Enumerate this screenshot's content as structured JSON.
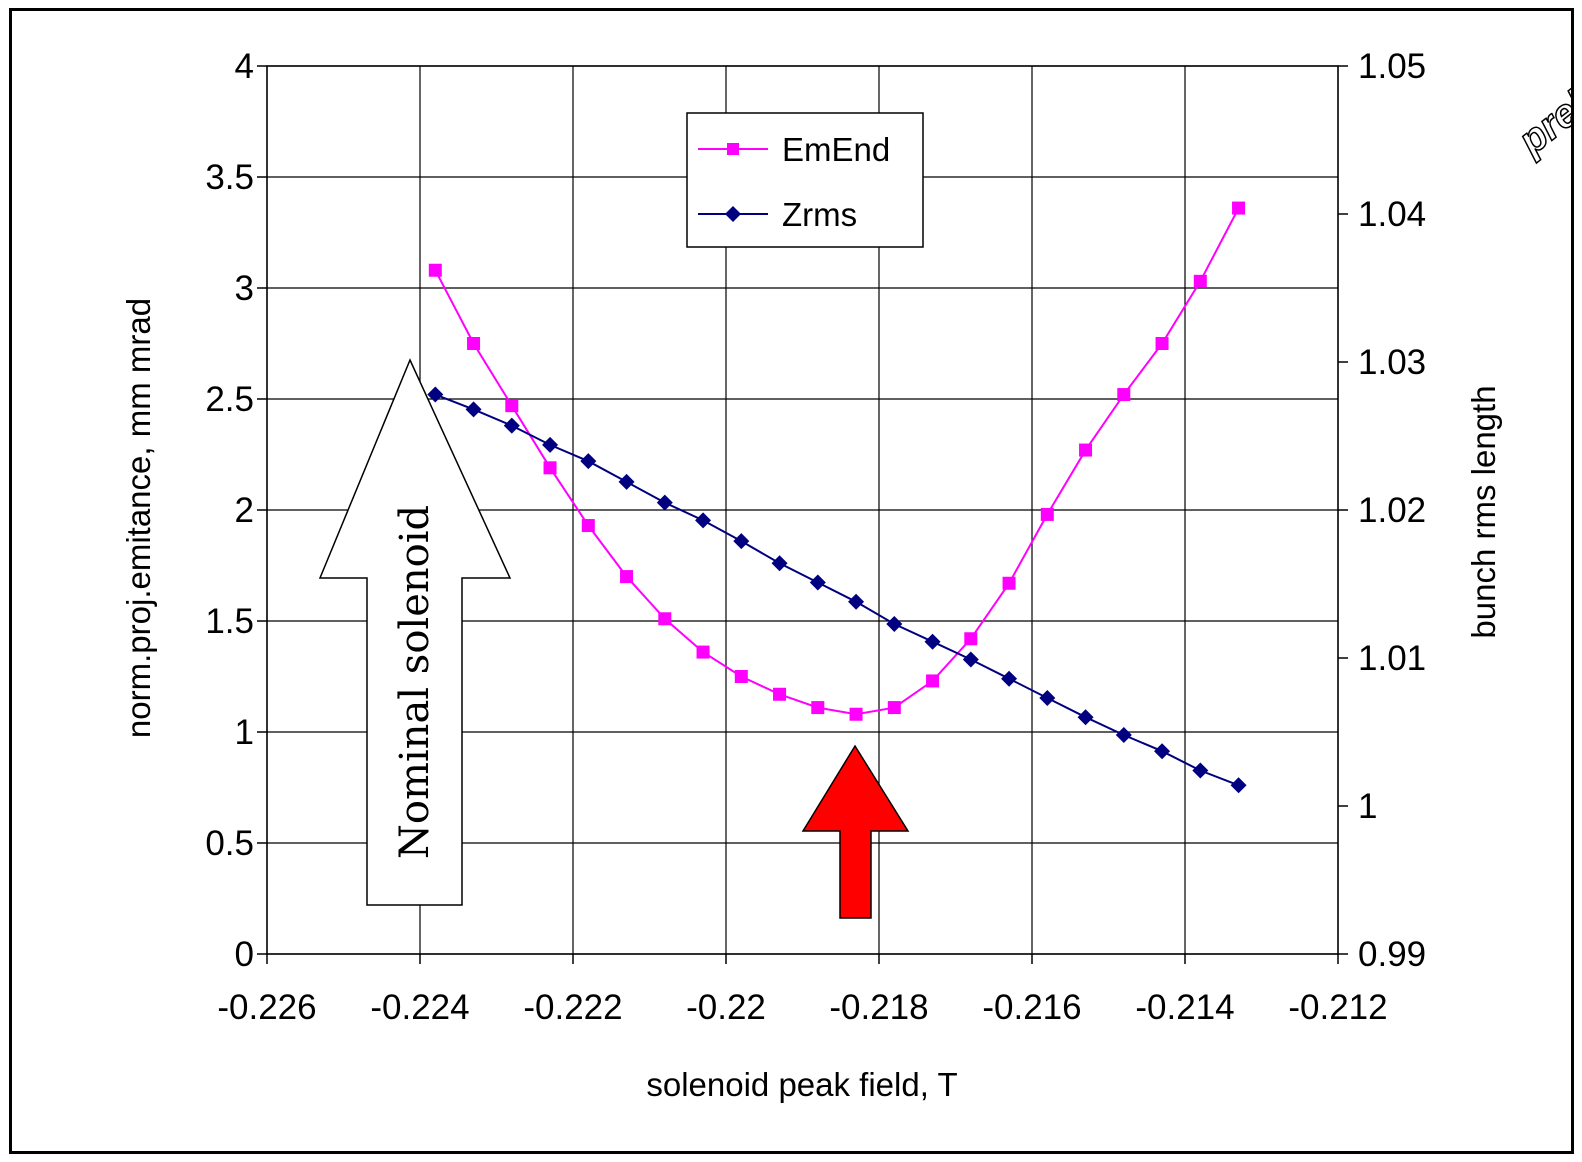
{
  "chart_data": {
    "type": "line",
    "xlabel": "solenoid peak field, T",
    "ylabel": "norm.proj.emitance, mm mrad",
    "y2label": "bunch rms length",
    "xlim": [
      -0.226,
      -0.212
    ],
    "ylim": [
      0,
      4
    ],
    "y2lim": [
      0.99,
      1.05
    ],
    "x_ticks": [
      "-0.226",
      "-0.224",
      "-0.222",
      "-0.22",
      "-0.218",
      "-0.216",
      "-0.214",
      "-0.212"
    ],
    "y_ticks": [
      "0",
      "0.5",
      "1",
      "1.5",
      "2",
      "2.5",
      "3",
      "3.5",
      "4"
    ],
    "y2_ticks": [
      "0.99",
      "1",
      "1.01",
      "1.02",
      "1.03",
      "1.04",
      "1.05"
    ],
    "grid": "horizontal and vertical",
    "legend_position": "top-center",
    "x": [
      -0.2238,
      -0.2233,
      -0.2228,
      -0.2223,
      -0.2218,
      -0.2213,
      -0.2208,
      -0.2203,
      -0.2198,
      -0.2193,
      -0.2188,
      -0.2183,
      -0.2178,
      -0.2173,
      -0.2168,
      -0.2163,
      -0.2158,
      -0.2153,
      -0.2148,
      -0.2143,
      -0.2138,
      -0.2133
    ],
    "series": [
      {
        "name": "EmEnd",
        "axis": "left",
        "color": "#ff00ff",
        "marker": "square",
        "values": [
          3.08,
          2.75,
          2.47,
          2.19,
          1.93,
          1.7,
          1.51,
          1.36,
          1.25,
          1.17,
          1.11,
          1.08,
          1.11,
          1.23,
          1.42,
          1.67,
          1.98,
          2.27,
          2.52,
          2.75,
          3.03,
          3.36
        ]
      },
      {
        "name": "Zrms",
        "axis": "right",
        "color": "#000080",
        "marker": "diamond",
        "values": [
          1.0278,
          1.0268,
          1.0257,
          1.0244,
          1.0233,
          1.0219,
          1.0205,
          1.0193,
          1.0179,
          1.0164,
          1.0151,
          1.0138,
          1.0123,
          1.0111,
          1.0099,
          1.0086,
          1.0073,
          1.006,
          1.0048,
          1.0037,
          1.0024,
          1.0014
        ]
      }
    ],
    "annotations": [
      {
        "text": "Nominal solenoid",
        "kind": "white up-arrow",
        "x": -0.2241
      },
      {
        "kind": "red up-arrow",
        "x": -0.2183
      }
    ]
  },
  "stamp_text": "preli"
}
